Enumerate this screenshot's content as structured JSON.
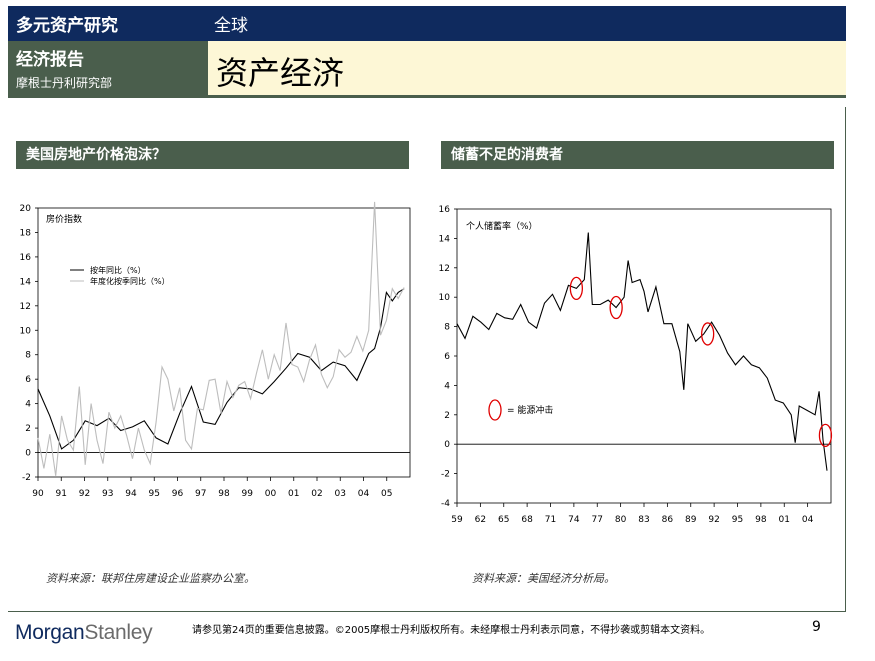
{
  "header": {
    "dept_title": "多元资产研究",
    "region": "全球",
    "report_type": "经济报告",
    "dept_name": "摩根士丹利研究部",
    "page_title": "资产经济"
  },
  "footer": {
    "logo_part1": "Morgan",
    "logo_part2": "Stanley",
    "note": "请参见第24页的重要信息披露。©2005摩根士丹利版权所有。未经摩根士丹利表示同意，不得抄袭或剪辑本文资料。",
    "page_number": "9"
  },
  "colors": {
    "navy": "#0f2a5e",
    "green_grey": "#4a5e4c",
    "cream": "#fdf7d6",
    "shock_circle": "#e00000"
  },
  "chart_data": [
    {
      "type": "line",
      "title": "美国房地产价格泡沫？",
      "ylabel": "房价指数",
      "source": "资料来源：联邦住房建设企业监察办公室。",
      "ylim": [
        -2,
        20
      ],
      "yticks": [
        "-2",
        "0",
        "2",
        "4",
        "6",
        "8",
        "10",
        "12",
        "14",
        "16",
        "18",
        "20"
      ],
      "xlim": [
        1990,
        2005.75
      ],
      "xticks": [
        "90",
        "91",
        "92",
        "93",
        "94",
        "95",
        "96",
        "97",
        "98",
        "99",
        "00",
        "01",
        "02",
        "03",
        "04",
        "05"
      ],
      "legend_position": "upper-left",
      "series": [
        {
          "name": "按年同比（%）",
          "color": "#000000",
          "x": [
            1990,
            1990.5,
            1991,
            1991.5,
            1992,
            1992.5,
            1993,
            1993.5,
            1994,
            1994.5,
            1995,
            1995.5,
            1996,
            1996.5,
            1997,
            1997.5,
            1998,
            1998.5,
            1999,
            1999.5,
            2000,
            2000.5,
            2001,
            2001.5,
            2002,
            2002.5,
            2003,
            2003.5,
            2004,
            2004.25,
            2004.5,
            2004.75,
            2005,
            2005.25,
            2005.5
          ],
          "y": [
            5.2,
            3,
            0.3,
            1,
            2.6,
            2.2,
            2.8,
            1.8,
            2.1,
            2.6,
            1.2,
            0.7,
            3.2,
            5.4,
            2.5,
            2.3,
            4.1,
            5.3,
            5.2,
            4.8,
            5.8,
            6.9,
            8.1,
            7.8,
            6.7,
            7.4,
            7.1,
            5.9,
            8.1,
            8.5,
            10.2,
            13.1,
            12.4,
            13.1,
            13.4
          ]
        },
        {
          "name": "年度化按季同比（%）",
          "color": "#bdbdbd",
          "x": [
            1990,
            1990.25,
            1990.5,
            1990.75,
            1991,
            1991.25,
            1991.5,
            1991.75,
            1992,
            1992.25,
            1992.5,
            1992.75,
            1993,
            1993.25,
            1993.5,
            1993.75,
            1994,
            1994.25,
            1994.5,
            1994.75,
            1995,
            1995.25,
            1995.5,
            1995.75,
            1996,
            1996.25,
            1996.5,
            1996.75,
            1997,
            1997.25,
            1997.5,
            1997.75,
            1998,
            1998.25,
            1998.5,
            1998.75,
            1999,
            1999.25,
            1999.5,
            1999.75,
            2000,
            2000.25,
            2000.5,
            2000.75,
            2001,
            2001.25,
            2001.5,
            2001.75,
            2002,
            2002.25,
            2002.5,
            2002.75,
            2003,
            2003.25,
            2003.5,
            2003.75,
            2004,
            2004.25,
            2004.5,
            2004.75,
            2005,
            2005.25,
            2005.5
          ],
          "y": [
            1.2,
            -1.3,
            1.5,
            -1.9,
            3,
            1,
            0.2,
            5.4,
            -1,
            4,
            1,
            -0.9,
            3.3,
            2,
            3,
            1.4,
            -0.5,
            2,
            0.2,
            -0.9,
            2.5,
            7,
            6,
            3.4,
            5.3,
            1,
            0.3,
            3.6,
            3.5,
            5.9,
            6,
            3.2,
            5.8,
            4.5,
            5.5,
            5.8,
            4.4,
            6.5,
            8.4,
            6,
            8,
            6.7,
            10.6,
            7.2,
            7,
            5.8,
            7.6,
            8.8,
            6.4,
            5.3,
            6.2,
            8.4,
            7.8,
            8.2,
            9.5,
            8.3,
            10,
            20.5,
            9.6,
            10.8,
            13.4,
            12.6,
            13.5
          ]
        }
      ]
    },
    {
      "type": "line",
      "title": "储蓄不足的消费者",
      "ylabel": "个人储蓄率（%）",
      "source": "资料来源：美国经济分析局。",
      "ylim": [
        -4,
        16
      ],
      "yticks": [
        "-4",
        "-2",
        "0",
        "2",
        "4",
        "6",
        "8",
        "10",
        "12",
        "14",
        "16"
      ],
      "xlim": [
        1959,
        2006
      ],
      "xticks": [
        "59",
        "62",
        "65",
        "68",
        "71",
        "74",
        "77",
        "80",
        "83",
        "86",
        "89",
        "92",
        "95",
        "98",
        "01",
        "04"
      ],
      "series": [
        {
          "name": "个人储蓄率",
          "color": "#000000",
          "x": [
            1959,
            1960,
            1961,
            1962,
            1963,
            1964,
            1965,
            1966,
            1967,
            1968,
            1969,
            1970,
            1971,
            1972,
            1973,
            1974,
            1975,
            1975.5,
            1976,
            1977,
            1978,
            1979,
            1980,
            1980.5,
            1981,
            1982,
            1982.5,
            1983,
            1984,
            1985,
            1986,
            1987,
            1987.5,
            1988,
            1989,
            1990,
            1991,
            1992,
            1993,
            1994,
            1995,
            1996,
            1997,
            1998,
            1999,
            2000,
            2001,
            2001.5,
            2002,
            2003,
            2004,
            2004.5,
            2005,
            2005.5
          ],
          "y": [
            8.2,
            7.2,
            8.7,
            8.3,
            7.8,
            8.9,
            8.6,
            8.5,
            9.5,
            8.3,
            7.9,
            9.6,
            10.2,
            9.1,
            10.8,
            10.6,
            11.2,
            14.4,
            9.5,
            9.5,
            9.8,
            9.3,
            10,
            12.5,
            11,
            11.2,
            10.4,
            9,
            10.7,
            8.2,
            8.2,
            6.3,
            3.7,
            8.2,
            7,
            7.5,
            8.3,
            7.4,
            6.2,
            5.4,
            6,
            5.4,
            5.2,
            4.5,
            3,
            2.8,
            2,
            0.1,
            2.6,
            2.3,
            2,
            3.6,
            0.3,
            -1.8
          ]
        }
      ],
      "annotations": {
        "legend_label": "=    能源冲击",
        "shock_years": [
          1974,
          1979,
          1990.5,
          2005.3
        ]
      }
    }
  ]
}
